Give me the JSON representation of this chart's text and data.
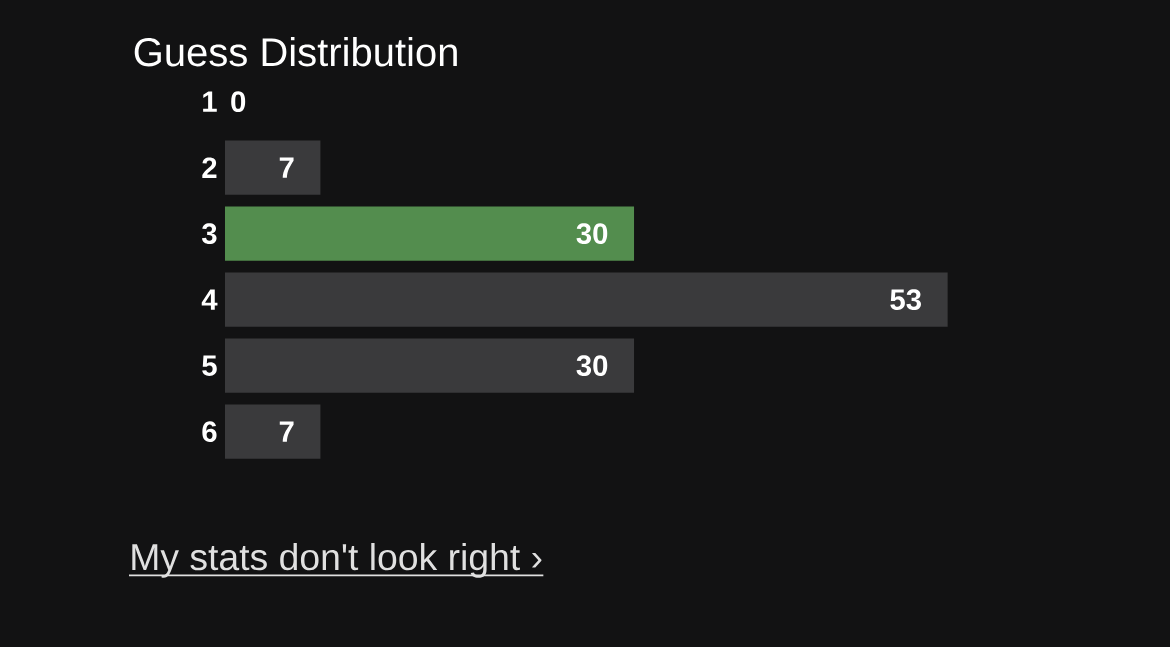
{
  "chart_data": {
    "type": "bar",
    "orientation": "horizontal",
    "title": "Guess Distribution",
    "categories": [
      "1",
      "2",
      "3",
      "4",
      "5",
      "6"
    ],
    "values": [
      0,
      7,
      30,
      53,
      30,
      7
    ],
    "colors": [
      "#3a3a3c",
      "#3a3a3c",
      "#538d4e",
      "#3a3a3c",
      "#3a3a3c",
      "#3a3a3c"
    ],
    "data_labels": true,
    "annotations": [
      "My stats don't look right ›"
    ]
  }
}
